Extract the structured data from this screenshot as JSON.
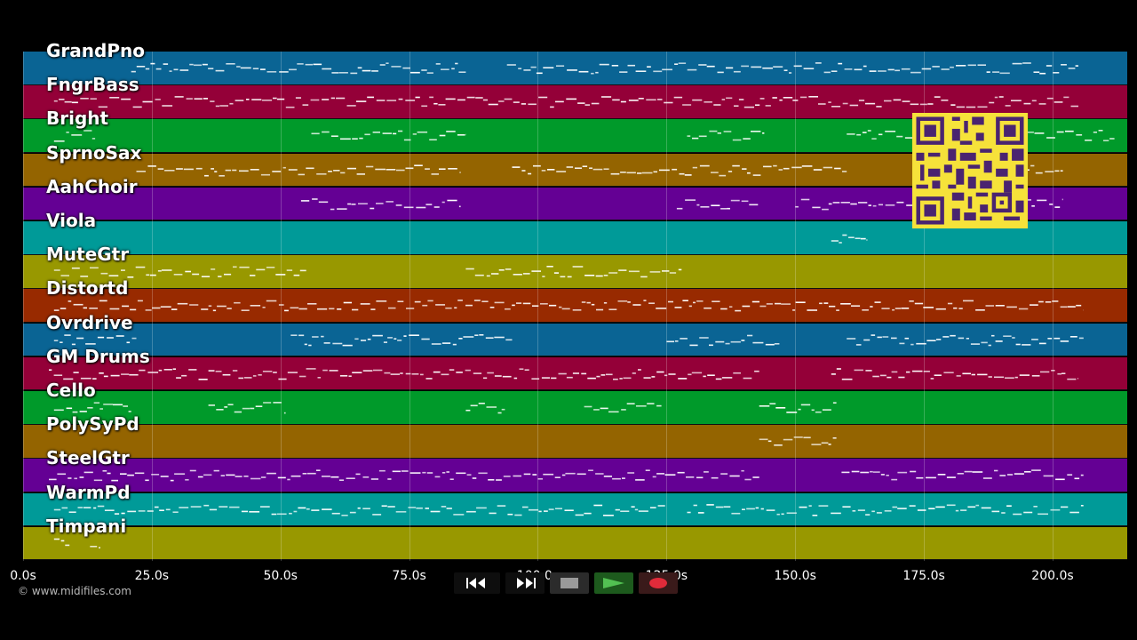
{
  "timeline": {
    "ticks": [
      "0.0s",
      "25.0s",
      "50.0s",
      "75.0s",
      "100.0s",
      "125.0s",
      "150.0s",
      "175.0s",
      "200.0s"
    ],
    "tick_seconds": [
      0,
      25,
      50,
      75,
      100,
      125,
      150,
      175,
      200
    ],
    "max_seconds": 214.5
  },
  "tracks": [
    {
      "name": "GrandPno",
      "color": "#0a6494",
      "segments": [
        [
          21,
          86
        ],
        [
          94,
          205
        ]
      ]
    },
    {
      "name": "FngrBass",
      "color": "#940038",
      "segments": [
        [
          6,
          205
        ]
      ]
    },
    {
      "name": "Bright",
      "color": "#009a2a",
      "segments": [
        [
          6,
          14
        ],
        [
          56,
          86
        ],
        [
          129,
          144
        ],
        [
          160,
          212
        ]
      ]
    },
    {
      "name": "SprnoSax",
      "color": "#946400",
      "segments": [
        [
          22,
          85
        ],
        [
          95,
          160
        ],
        [
          175,
          202
        ]
      ]
    },
    {
      "name": "AahChoir",
      "color": "#640094",
      "segments": [
        [
          54,
          85
        ],
        [
          127,
          143
        ],
        [
          150,
          202
        ]
      ]
    },
    {
      "name": "Viola",
      "color": "#009a98",
      "segments": [
        [
          157,
          164
        ]
      ]
    },
    {
      "name": "MuteGtr",
      "color": "#989800",
      "segments": [
        [
          6,
          55
        ],
        [
          86,
          128
        ]
      ]
    },
    {
      "name": "Distortd",
      "color": "#982a00",
      "segments": [
        [
          6,
          206
        ]
      ]
    },
    {
      "name": "Ovrdrive",
      "color": "#0a6494",
      "segments": [
        [
          6,
          22
        ],
        [
          52,
          95
        ],
        [
          125,
          147
        ],
        [
          160,
          206
        ]
      ]
    },
    {
      "name": "GM Drums",
      "color": "#940038",
      "segments": [
        [
          5,
          143
        ],
        [
          157,
          205
        ]
      ]
    },
    {
      "name": "Cello",
      "color": "#009a2a",
      "segments": [
        [
          6,
          21
        ],
        [
          36,
          51
        ],
        [
          86,
          94
        ],
        [
          109,
          124
        ],
        [
          143,
          158
        ]
      ]
    },
    {
      "name": "PolySyPd",
      "color": "#946400",
      "segments": [
        [
          143,
          158
        ]
      ]
    },
    {
      "name": "SteelGtr",
      "color": "#640094",
      "segments": [
        [
          5,
          143
        ],
        [
          159,
          206
        ]
      ]
    },
    {
      "name": "WarmPd",
      "color": "#009a98",
      "segments": [
        [
          6,
          125
        ],
        [
          129,
          206
        ]
      ]
    },
    {
      "name": "Timpani",
      "color": "#989800",
      "segments": [
        [
          6,
          9
        ],
        [
          13,
          15
        ]
      ]
    }
  ],
  "credit": "© www.midifiles.com",
  "controls": {
    "rewind": "rewind-icon",
    "fast_forward": "fast-forward-icon",
    "stop": "stop-icon",
    "play": "play-icon",
    "record": "record-icon"
  }
}
